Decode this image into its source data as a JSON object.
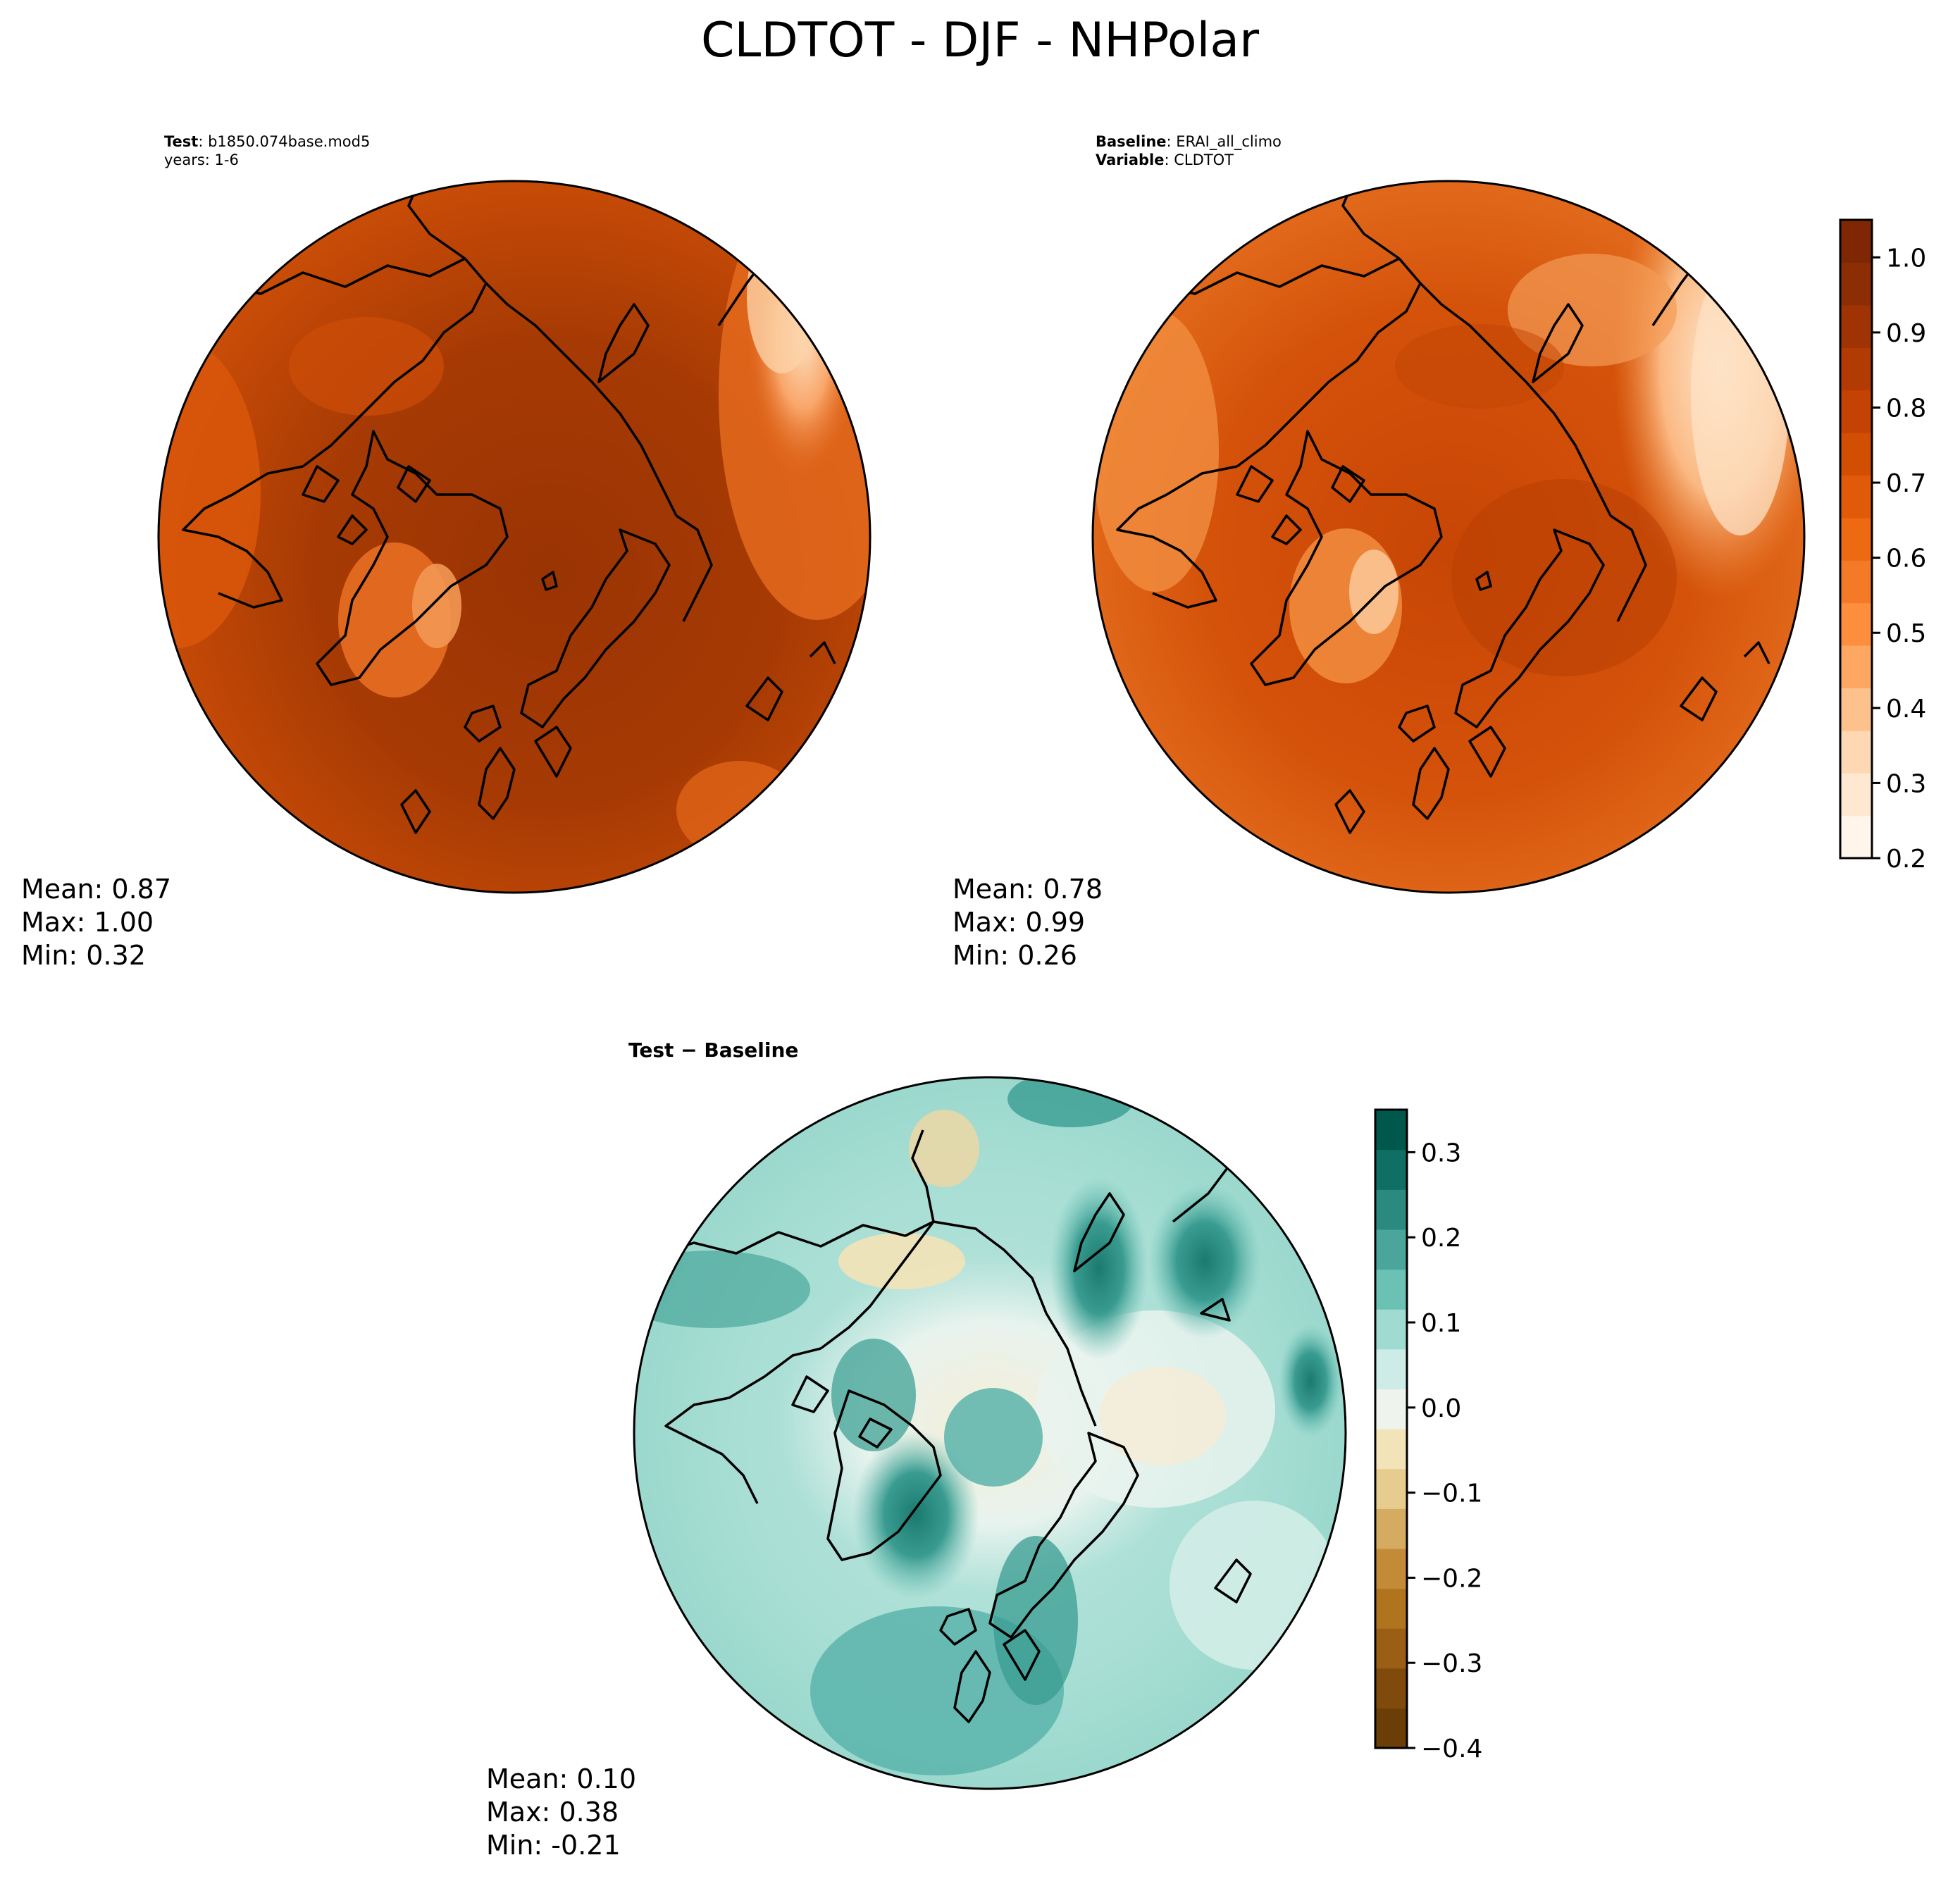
{
  "figure": {
    "title": "CLDTOT - DJF - NHPolar"
  },
  "test_panel": {
    "label_bold": "Test",
    "label_text": ": b1850.074base.mod5",
    "years": "years: 1-6",
    "mean": "Mean:  0.87",
    "max": "Max:  1.00",
    "min": "Min:  0.32"
  },
  "baseline_panel": {
    "label_bold": "Baseline",
    "label_text": ": ERAI_all_climo",
    "variable_bold": "Variable",
    "variable_text": ": CLDTOT",
    "mean": "Mean:  0.78",
    "max": "Max:  0.99",
    "min": "Min:  0.26"
  },
  "diff_panel": {
    "title": "Test − Baseline",
    "mean": "Mean:  0.10",
    "max": "Max:  0.38",
    "min": "Min: -0.21"
  },
  "colors": {
    "abs_colormap": [
      "#fff5eb",
      "#fee6ce",
      "#fdd0a2",
      "#fdae6b",
      "#fd8d3c",
      "#f16913",
      "#e6550d",
      "#d94801",
      "#c44103",
      "#a63603",
      "#8c2d04",
      "#7f2704"
    ],
    "diff_colormap": [
      "#543005",
      "#8c510a",
      "#a9691b",
      "#bf812d",
      "#d8b365",
      "#e8d198",
      "#f6e8c3",
      "#f5f5f5",
      "#c7eae5",
      "#98d6cc",
      "#5ab4ac",
      "#35978f",
      "#01665e",
      "#003c30"
    ],
    "diff_colors_cbar": [
      "#6b3d07",
      "#7f4a0b",
      "#9b5e15",
      "#b0741f",
      "#c38a38",
      "#d5ab62",
      "#e6cc8f",
      "#f3e3b8",
      "#eef3ee",
      "#cdece7",
      "#9fdbd1",
      "#6cc1b5",
      "#4aa69b",
      "#2b8a80",
      "#0f6f65",
      "#00574c"
    ],
    "abs_colors_cbar": [
      "#fff5eb",
      "#fee8d2",
      "#fdd8b2",
      "#fdc28b",
      "#fda762",
      "#fd8e3e",
      "#f57a27",
      "#ed6912",
      "#e05a09",
      "#d24e03",
      "#c44203",
      "#b23b03",
      "#a03303",
      "#8c2d04",
      "#7f2704"
    ],
    "land_outline": "#000000"
  },
  "chart_data": [
    {
      "type": "heatmap",
      "title": "Test: b1850.074base.mod5",
      "subtitle": "years: 1-6",
      "projection": "north-polar-stereographic",
      "summary": {
        "mean": 0.87,
        "max": 1.0,
        "min": 0.32
      },
      "shared_colorbar": {
        "range": [
          0.2,
          1.05
        ],
        "ticks": [
          0.2,
          0.3,
          0.4,
          0.5,
          0.6,
          0.7,
          0.8,
          0.9,
          1.0
        ],
        "placement": "right of baseline panel"
      }
    },
    {
      "type": "heatmap",
      "title": "Baseline: ERAI_all_climo",
      "subtitle": "Variable: CLDTOT",
      "projection": "north-polar-stereographic",
      "summary": {
        "mean": 0.78,
        "max": 0.99,
        "min": 0.26
      },
      "colorbar": {
        "range": [
          0.2,
          1.05
        ],
        "ticks": [
          0.2,
          0.3,
          0.4,
          0.5,
          0.6,
          0.7,
          0.8,
          0.9,
          1.0
        ],
        "tick_labels": [
          "0.2",
          "0.3",
          "0.4",
          "0.5",
          "0.6",
          "0.7",
          "0.8",
          "0.9",
          "1.0"
        ]
      }
    },
    {
      "type": "heatmap",
      "title": "Test − Baseline",
      "projection": "north-polar-stereographic",
      "summary": {
        "mean": 0.1,
        "max": 0.38,
        "min": -0.21
      },
      "colorbar": {
        "range": [
          -0.4,
          0.35
        ],
        "ticks": [
          -0.4,
          -0.3,
          -0.2,
          -0.1,
          0.0,
          0.1,
          0.2,
          0.3
        ],
        "tick_labels": [
          "−0.4",
          "−0.3",
          "−0.2",
          "−0.1",
          "0.0",
          "0.1",
          "0.2",
          "0.3"
        ]
      }
    }
  ]
}
